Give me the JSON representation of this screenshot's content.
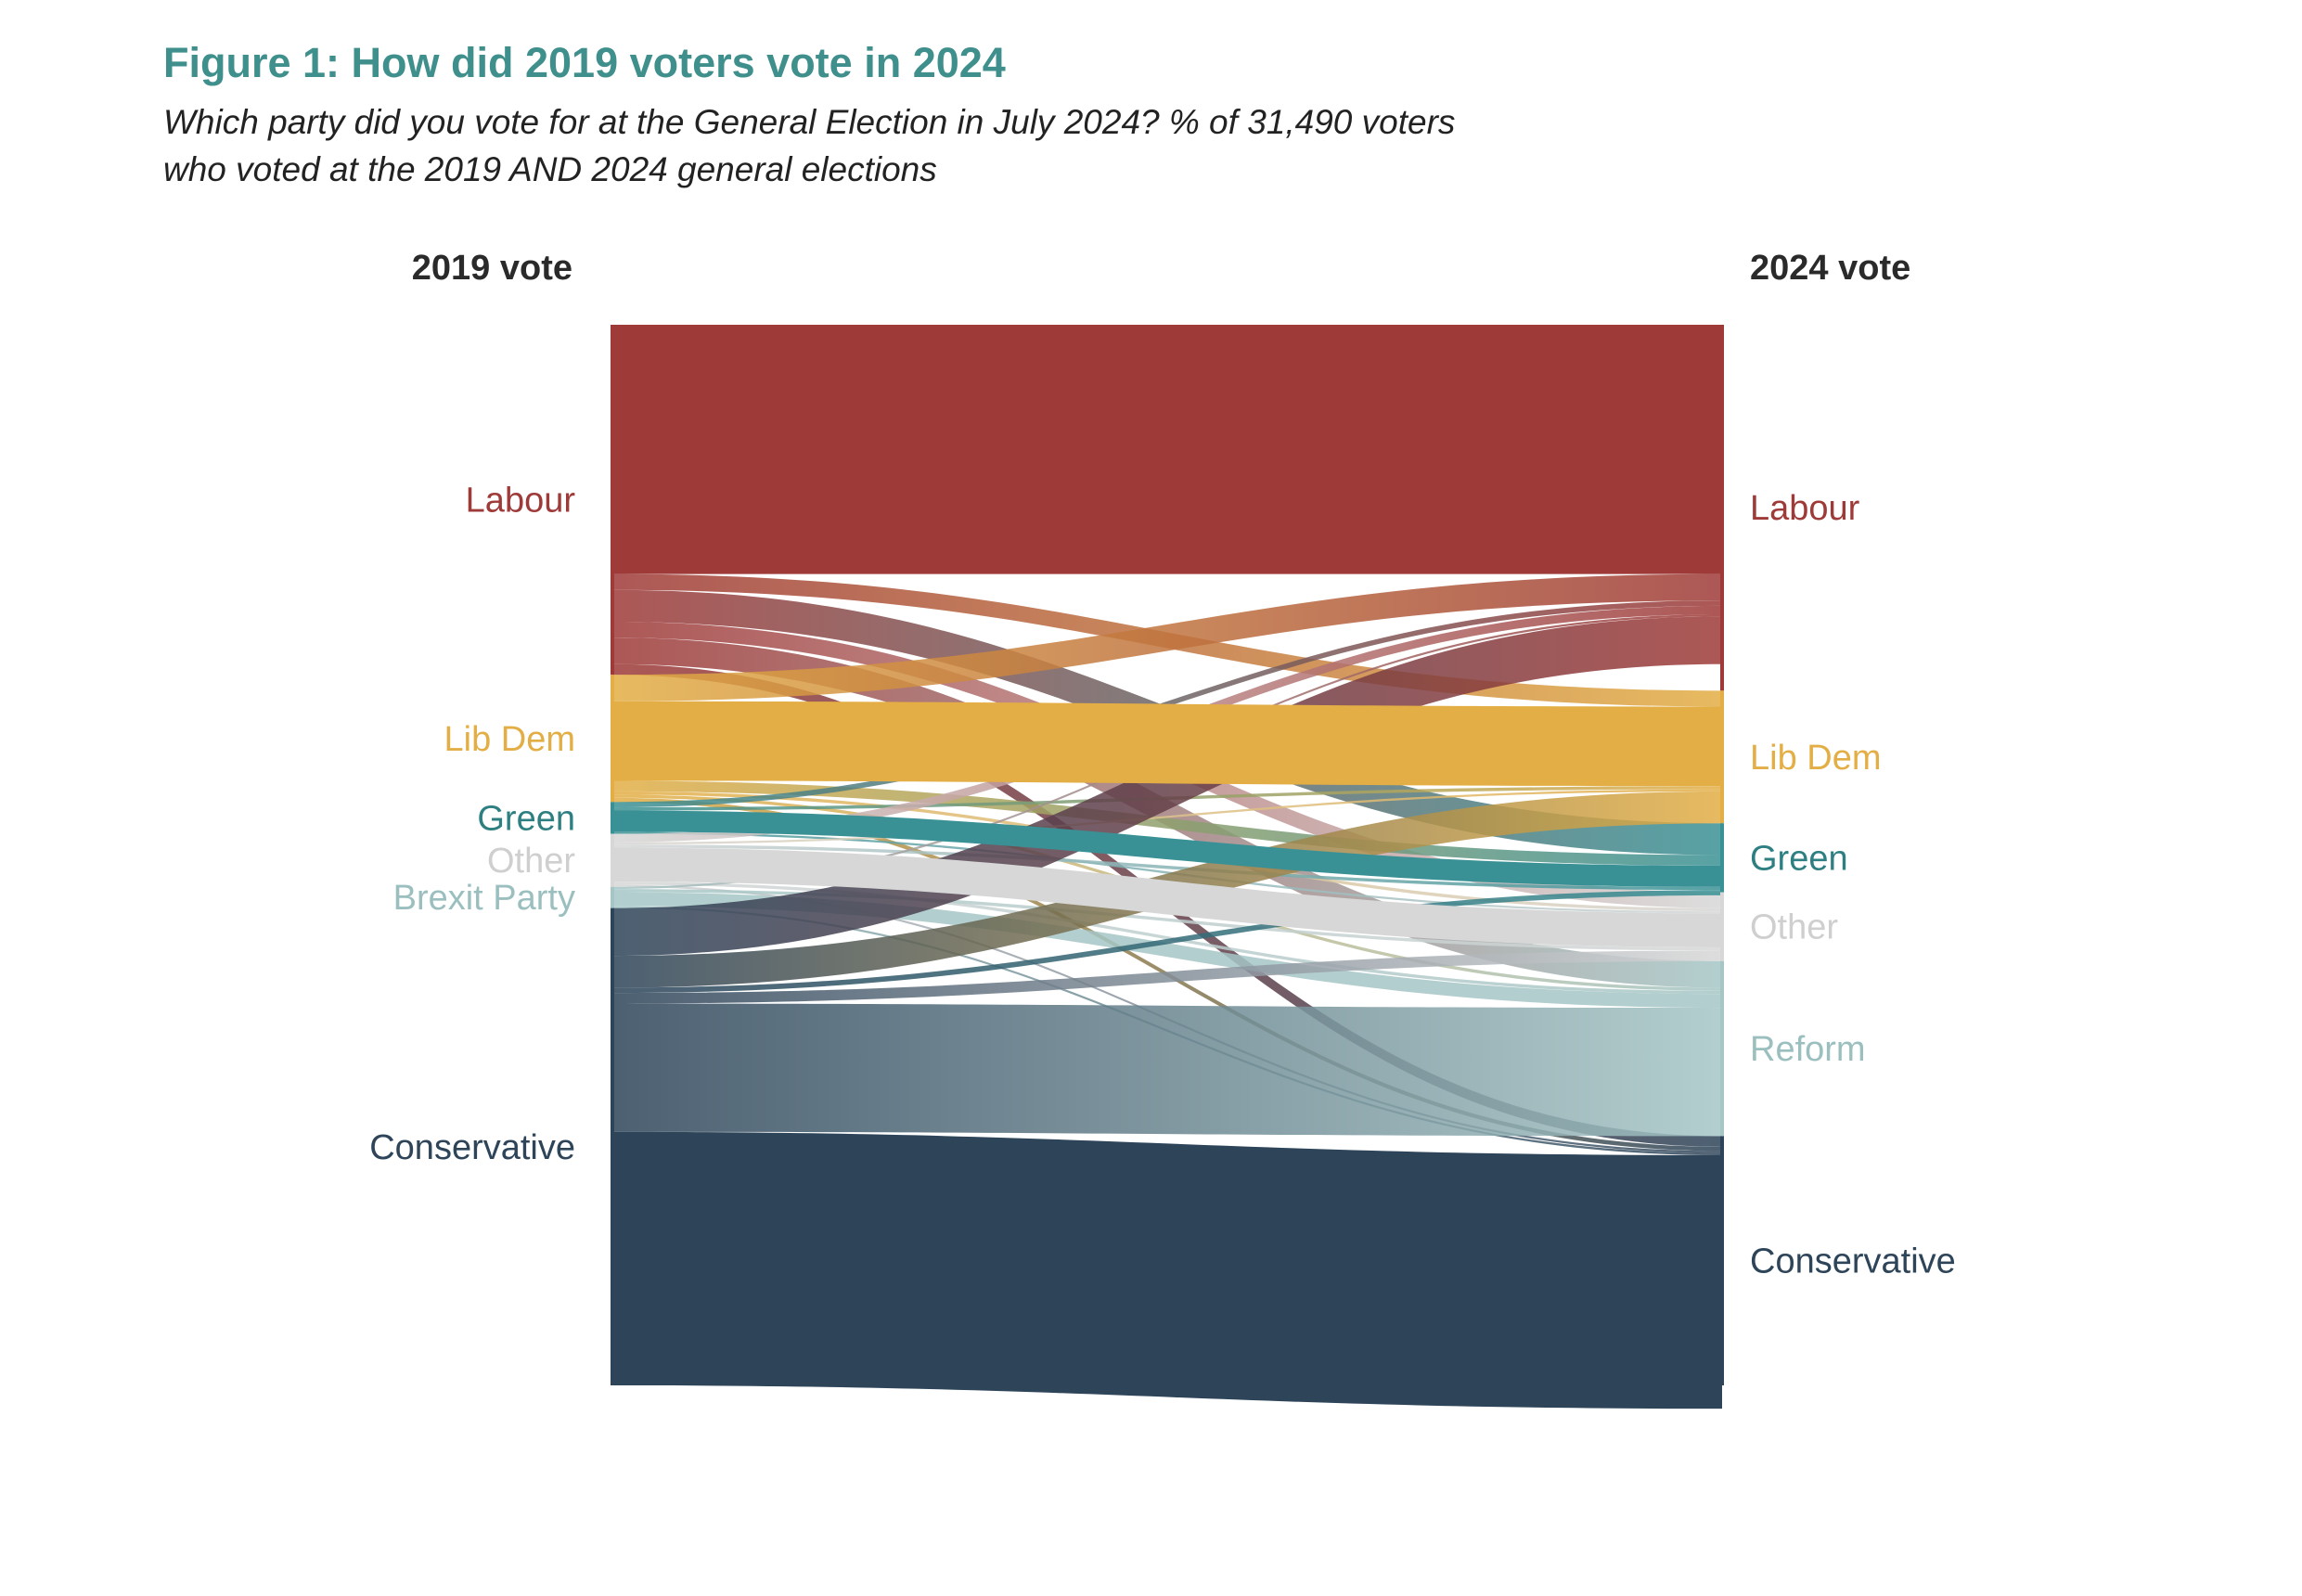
{
  "title": "Figure 1: How did 2019 voters vote in 2024",
  "subtitle_lines": [
    "Which party did you vote for at the General Election in July 2024? % of 31,490 voters",
    "who voted at the 2019 AND 2024 general elections"
  ],
  "chart_data": {
    "type": "sankey",
    "left_header": "2019 vote",
    "right_header": "2024 vote",
    "left_nodes": [
      {
        "id": "L_lab",
        "label": "Labour",
        "value": 33.0,
        "color": "#9e3a38",
        "label_color": "#9e3a38"
      },
      {
        "id": "L_ld",
        "label": "Lib Dem",
        "value": 12.0,
        "color": "#e3ae45",
        "label_color": "#e3ae45"
      },
      {
        "id": "L_grn",
        "label": "Green",
        "value": 3.0,
        "color": "#3a9195",
        "label_color": "#2e7f82"
      },
      {
        "id": "L_oth",
        "label": "Other",
        "value": 5.0,
        "color": "#d7d7d7",
        "label_color": "#cfcfcf"
      },
      {
        "id": "L_brx",
        "label": "Brexit Party",
        "value": 2.0,
        "color": "#a6c6c6",
        "label_color": "#9bbfbf"
      },
      {
        "id": "L_con",
        "label": "Conservative",
        "value": 45.0,
        "color": "#2d4459",
        "label_color": "#2d4459"
      }
    ],
    "right_nodes": [
      {
        "id": "R_lab",
        "label": "Labour",
        "value": 34.5,
        "color": "#9e3a38",
        "label_color": "#9e3a38"
      },
      {
        "id": "R_ld",
        "label": "Lib Dem",
        "value": 12.5,
        "color": "#e3ae45",
        "label_color": "#e3ae45"
      },
      {
        "id": "R_grn",
        "label": "Green",
        "value": 6.5,
        "color": "#3a9195",
        "label_color": "#2e7f82"
      },
      {
        "id": "R_oth",
        "label": "Other",
        "value": 6.5,
        "color": "#d7d7d7",
        "label_color": "#cfcfcf"
      },
      {
        "id": "R_ref",
        "label": "Reform",
        "value": 16.5,
        "color": "#a6c6c6",
        "label_color": "#9bbfbf"
      },
      {
        "id": "R_con",
        "label": "Conservative",
        "value": 23.5,
        "color": "#2d4459",
        "label_color": "#2d4459"
      }
    ],
    "flows": [
      {
        "from": "L_lab",
        "to": "R_lab",
        "value": 23.5
      },
      {
        "from": "L_lab",
        "to": "R_ld",
        "value": 1.5
      },
      {
        "from": "L_lab",
        "to": "R_grn",
        "value": 3.0
      },
      {
        "from": "L_lab",
        "to": "R_oth",
        "value": 1.5
      },
      {
        "from": "L_lab",
        "to": "R_ref",
        "value": 2.5
      },
      {
        "from": "L_lab",
        "to": "R_con",
        "value": 1.0
      },
      {
        "from": "L_ld",
        "to": "R_lab",
        "value": 2.5
      },
      {
        "from": "L_ld",
        "to": "R_ld",
        "value": 7.5
      },
      {
        "from": "L_ld",
        "to": "R_grn",
        "value": 1.0
      },
      {
        "from": "L_ld",
        "to": "R_oth",
        "value": 0.3
      },
      {
        "from": "L_ld",
        "to": "R_ref",
        "value": 0.3
      },
      {
        "from": "L_ld",
        "to": "R_con",
        "value": 0.4
      },
      {
        "from": "L_grn",
        "to": "R_lab",
        "value": 0.5
      },
      {
        "from": "L_grn",
        "to": "R_ld",
        "value": 0.3
      },
      {
        "from": "L_grn",
        "to": "R_grn",
        "value": 2.0
      },
      {
        "from": "L_grn",
        "to": "R_oth",
        "value": 0.2
      },
      {
        "from": "L_oth",
        "to": "R_lab",
        "value": 0.8
      },
      {
        "from": "L_oth",
        "to": "R_ld",
        "value": 0.2
      },
      {
        "from": "L_oth",
        "to": "R_grn",
        "value": 0.3
      },
      {
        "from": "L_oth",
        "to": "R_oth",
        "value": 3.2
      },
      {
        "from": "L_oth",
        "to": "R_ref",
        "value": 0.3
      },
      {
        "from": "L_oth",
        "to": "R_con",
        "value": 0.2
      },
      {
        "from": "L_brx",
        "to": "R_lab",
        "value": 0.2
      },
      {
        "from": "L_brx",
        "to": "R_oth",
        "value": 0.3
      },
      {
        "from": "L_brx",
        "to": "R_ref",
        "value": 1.3
      },
      {
        "from": "L_brx",
        "to": "R_con",
        "value": 0.2
      },
      {
        "from": "L_con",
        "to": "R_lab",
        "value": 4.5
      },
      {
        "from": "L_con",
        "to": "R_ld",
        "value": 3.0
      },
      {
        "from": "L_con",
        "to": "R_grn",
        "value": 0.5
      },
      {
        "from": "L_con",
        "to": "R_oth",
        "value": 1.0
      },
      {
        "from": "L_con",
        "to": "R_ref",
        "value": 12.1
      },
      {
        "from": "L_con",
        "to": "R_con",
        "value": 23.9
      }
    ]
  }
}
